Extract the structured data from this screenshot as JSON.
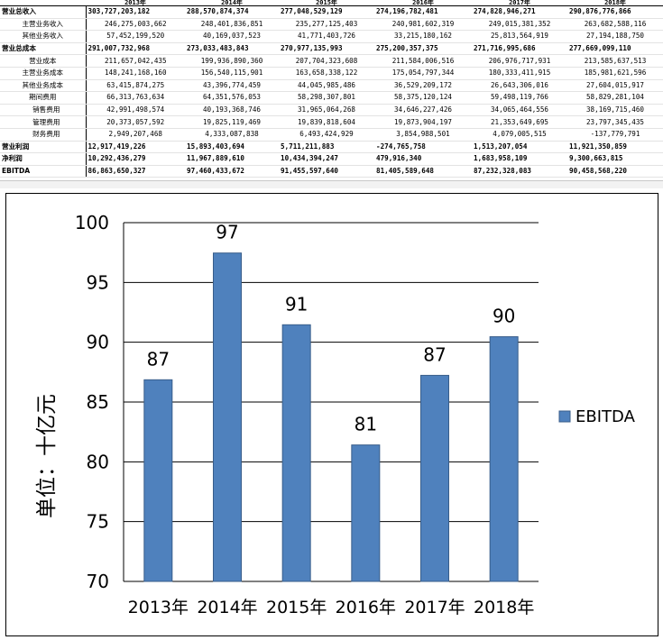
{
  "table": {
    "years": [
      "2013年",
      "2014年",
      "2015年",
      "2016年",
      "2017年",
      "2018年"
    ],
    "rows": [
      {
        "label": "营业总收入",
        "style": "bold",
        "values": [
          "303,727,203,182",
          "288,570,874,374",
          "277,048,529,129",
          "274,196,782,481",
          "274,828,946,271",
          "290,876,776,866"
        ]
      },
      {
        "label": "主营业务收入",
        "style": "sub",
        "values": [
          "246,275,003,662",
          "248,401,836,851",
          "235,277,125,403",
          "240,981,602,319",
          "249,015,381,352",
          "263,682,588,116"
        ]
      },
      {
        "label": "其他业务收入",
        "style": "sub",
        "values": [
          "57,452,199,520",
          "40,169,037,523",
          "41,771,403,726",
          "33,215,180,162",
          "25,813,564,919",
          "27,194,188,750"
        ]
      },
      {
        "label": "营业总成本",
        "style": "bold",
        "values": [
          "291,007,732,968",
          "273,033,483,843",
          "270,977,135,993",
          "275,200,357,375",
          "271,716,995,686",
          "277,669,099,110"
        ]
      },
      {
        "label": "营业成本",
        "style": "sub",
        "values": [
          "211,657,042,435",
          "199,936,890,360",
          "207,704,323,608",
          "211,584,006,516",
          "206,976,717,931",
          "213,585,637,513"
        ]
      },
      {
        "label": "主营业务成本",
        "style": "sub",
        "values": [
          "148,241,168,160",
          "156,540,115,901",
          "163,658,338,122",
          "175,054,797,344",
          "180,333,411,915",
          "185,981,621,596"
        ]
      },
      {
        "label": "其他业务成本",
        "style": "sub",
        "values": [
          "63,415,874,275",
          "43,396,774,459",
          "44,045,985,486",
          "36,529,209,172",
          "26,643,306,016",
          "27,604,015,917"
        ]
      },
      {
        "label": "期间费用",
        "style": "sub",
        "values": [
          "66,313,763,634",
          "64,351,576,053",
          "58,298,307,801",
          "58,375,120,124",
          "59,498,119,766",
          "58,829,281,104"
        ]
      },
      {
        "label": "销售费用",
        "style": "sub2",
        "values": [
          "42,991,498,574",
          "40,193,368,746",
          "31,965,064,268",
          "34,646,227,426",
          "34,065,464,556",
          "38,169,715,460"
        ]
      },
      {
        "label": "管理费用",
        "style": "sub2",
        "values": [
          "20,373,057,592",
          "19,825,119,469",
          "19,839,818,604",
          "19,873,904,197",
          "21,353,649,695",
          "23,797,345,435"
        ]
      },
      {
        "label": "财务费用",
        "style": "sub2",
        "values": [
          "2,949,207,468",
          "4,333,087,838",
          "6,493,424,929",
          "3,854,988,501",
          "4,079,005,515",
          "-137,779,791"
        ]
      },
      {
        "label": "营业利润",
        "style": "bold topline",
        "values": [
          "12,917,419,226",
          "15,893,403,694",
          "5,711,211,883",
          "-274,765,758",
          "1,513,207,054",
          "11,921,350,859"
        ]
      },
      {
        "label": "净利润",
        "style": "bold",
        "values": [
          "10,292,436,279",
          "11,967,889,610",
          "10,434,394,247",
          "479,916,340",
          "1,683,958,109",
          "9,300,663,815"
        ]
      },
      {
        "label": "EBITDA",
        "style": "bold",
        "values": [
          "86,863,650,327",
          "97,460,433,672",
          "91,455,597,640",
          "81,405,589,648",
          "87,232,328,083",
          "90,458,568,220"
        ]
      }
    ]
  },
  "chart_data": {
    "type": "bar",
    "categories": [
      "2013年",
      "2014年",
      "2015年",
      "2016年",
      "2017年",
      "2018年"
    ],
    "series": [
      {
        "name": "EBITDA",
        "values": [
          86.86,
          97.46,
          91.46,
          81.41,
          87.23,
          90.46
        ],
        "labels": [
          "87",
          "97",
          "91",
          "81",
          "87",
          "90"
        ],
        "color": "#4f81bd"
      }
    ],
    "ylabel": "单位：十亿元",
    "ylim": [
      70,
      100
    ],
    "yticks": [
      "70",
      "75",
      "80",
      "85",
      "90",
      "95",
      "100"
    ],
    "grid": true,
    "legend": "right"
  }
}
